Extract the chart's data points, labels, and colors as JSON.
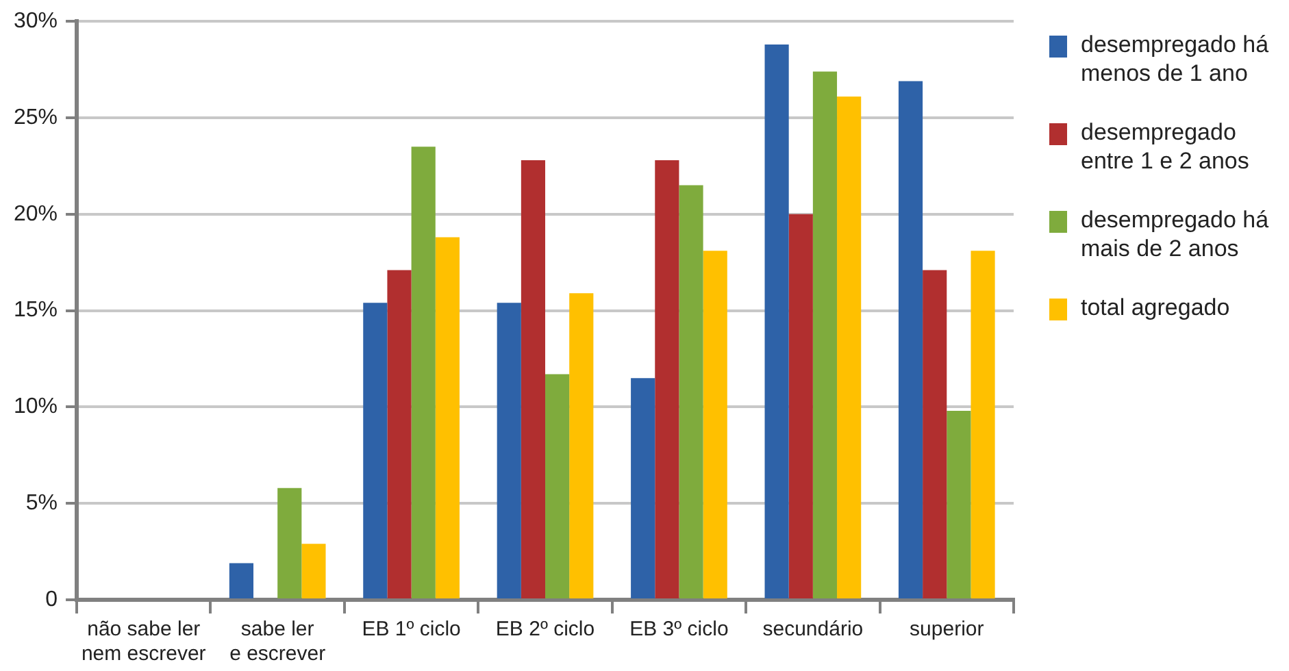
{
  "chart_data": {
    "type": "bar",
    "categories": [
      "não sabe ler\nnem escrever",
      "sabe ler\ne escrever",
      "EB 1º ciclo",
      "EB 2º ciclo",
      "EB 3º ciclo",
      "secundário",
      "superior"
    ],
    "series": [
      {
        "name": "desempregado há menos de 1 ano",
        "color": "#2e62a8",
        "values": [
          0,
          1.9,
          15.4,
          15.4,
          11.5,
          28.8,
          26.9
        ]
      },
      {
        "name": "desempregado entre 1 e 2 anos",
        "color": "#b12f2f",
        "values": [
          0,
          0,
          17.1,
          22.8,
          22.8,
          20.0,
          17.1
        ]
      },
      {
        "name": "desempregado há mais de 2 anos",
        "color": "#7fab3d",
        "values": [
          0,
          5.8,
          23.5,
          11.7,
          21.5,
          27.4,
          9.8
        ]
      },
      {
        "name": "total agregado",
        "color": "#ffc000",
        "values": [
          0,
          2.9,
          18.8,
          15.9,
          18.1,
          26.1,
          18.1
        ]
      }
    ],
    "ylim": [
      0,
      30
    ],
    "yticks": [
      0,
      {
        "value": 5,
        "label": "5%"
      },
      {
        "value": 10,
        "label": "10%"
      },
      {
        "value": 15,
        "label": "15%"
      },
      {
        "value": 20,
        "label": "20%"
      },
      {
        "value": 25,
        "label": "25%"
      },
      {
        "value": 30,
        "label": "30%"
      }
    ],
    "grid": "y",
    "legend": "top right"
  }
}
